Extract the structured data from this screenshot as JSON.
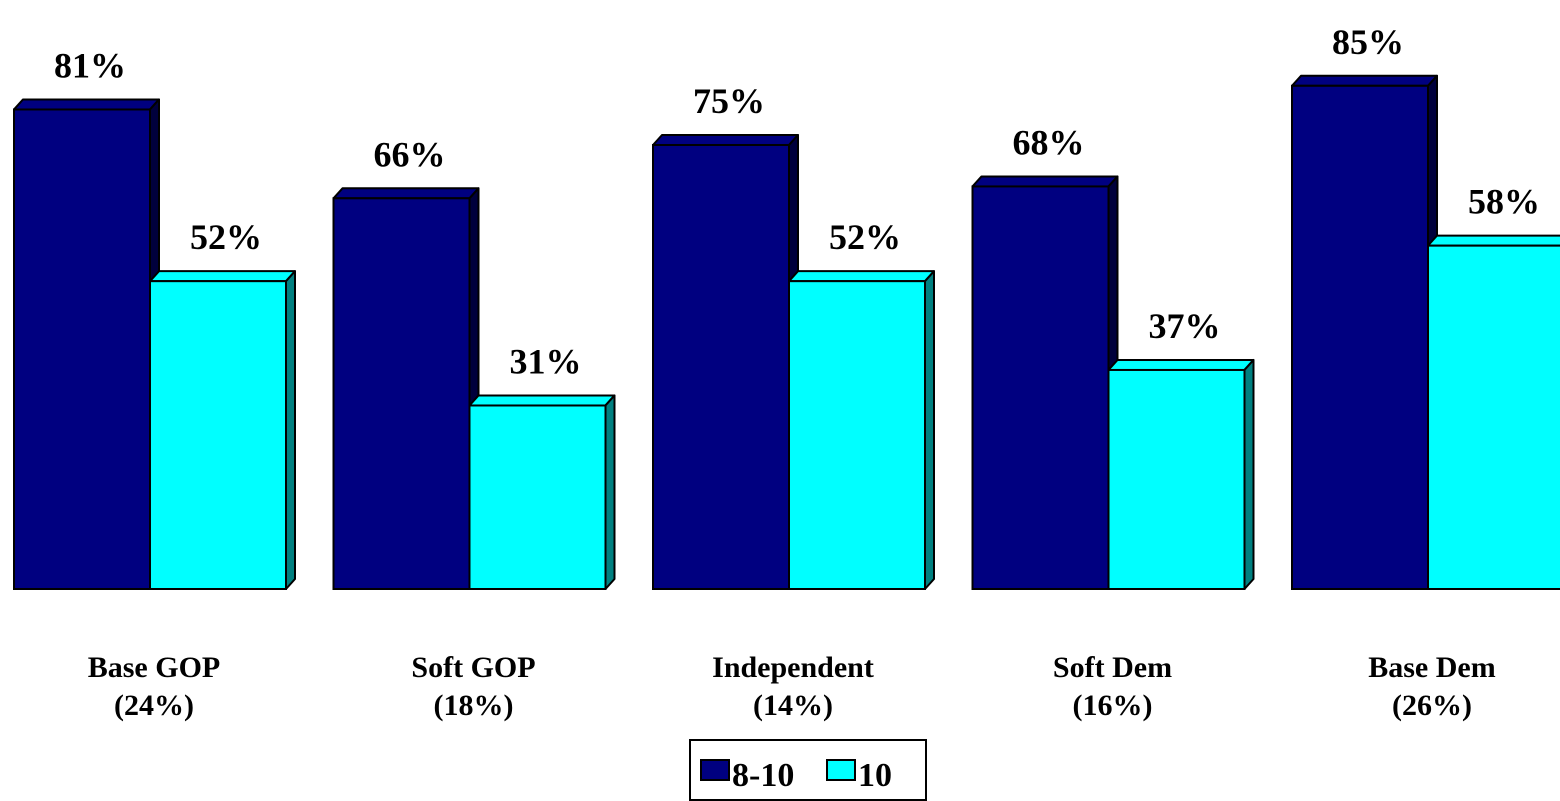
{
  "chart_data": {
    "type": "bar",
    "title": "",
    "xlabel": "",
    "ylabel": "",
    "ylim": [
      0,
      85
    ],
    "grid": false,
    "legend_position": "bottom-center",
    "categories": [
      {
        "line1": "Base GOP",
        "line2": "(24%)"
      },
      {
        "line1": "Soft GOP",
        "line2": "(18%)"
      },
      {
        "line1": "Independent",
        "line2": "(14%)"
      },
      {
        "line1": "Soft Dem",
        "line2": "(16%)"
      },
      {
        "line1": "Base Dem",
        "line2": "(26%)"
      }
    ],
    "series": [
      {
        "name": "8-10",
        "color": "#000080",
        "side_color": "#00003c",
        "values": [
          81,
          66,
          75,
          68,
          85
        ],
        "labels": [
          "81%",
          "66%",
          "75%",
          "68%",
          "85%"
        ]
      },
      {
        "name": "10",
        "color": "#00ffff",
        "side_color": "#008080",
        "values": [
          52,
          31,
          52,
          37,
          58
        ],
        "labels": [
          "52%",
          "31%",
          "52%",
          "37%",
          "58%"
        ]
      }
    ]
  }
}
